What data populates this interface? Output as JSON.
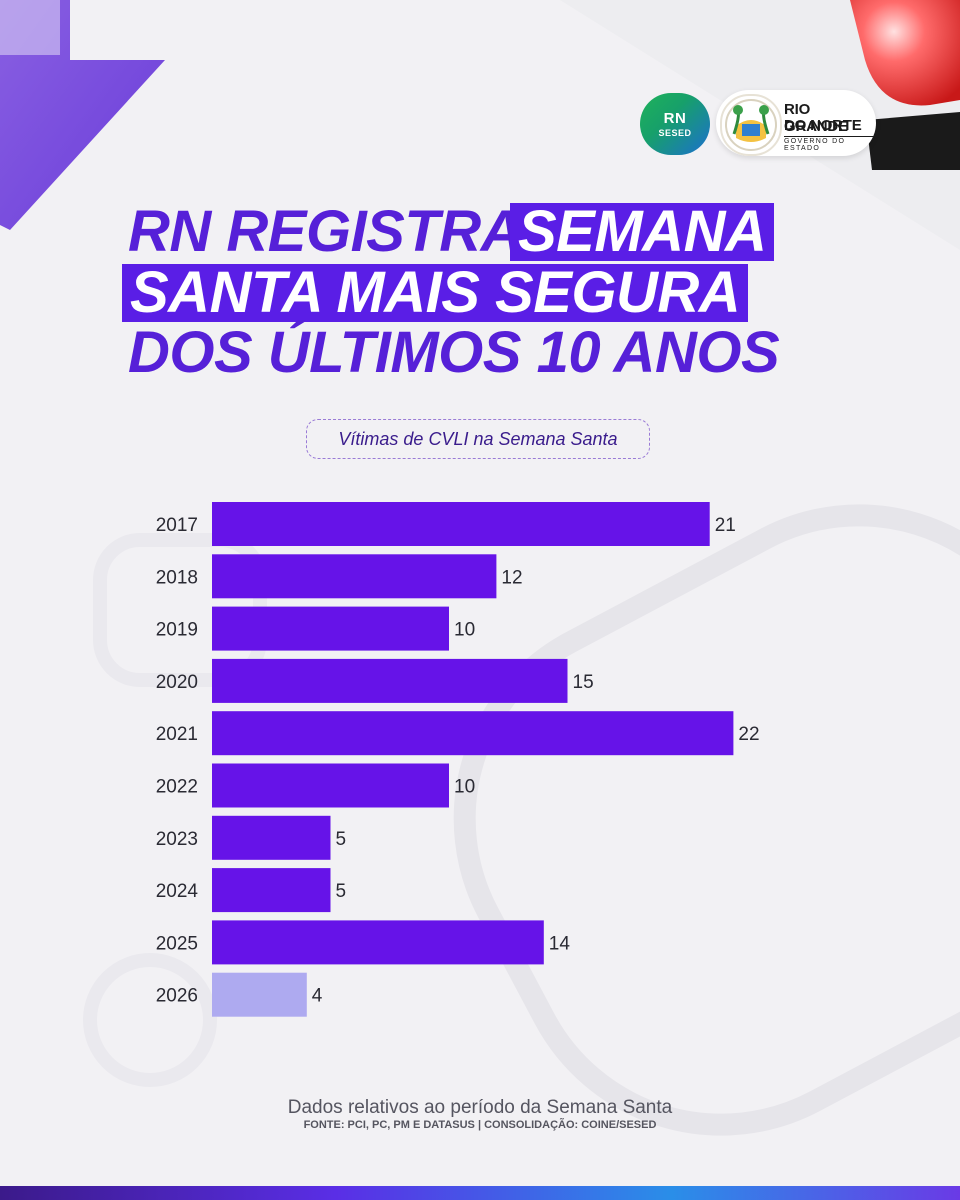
{
  "logos": {
    "rn_main": "RN",
    "rn_sub": "SESED",
    "gov_line1": "RIO GRANDE",
    "gov_line2": "DO NORTE",
    "gov_sub": "GOVERNO DO ESTADO"
  },
  "headline": {
    "line1_a": "RN REGISTRA",
    "line1_b": "SEMANA",
    "line2": "SANTA MAIS SEGURA",
    "line3": "DOS ÚLTIMOS 10 ANOS"
  },
  "colors": {
    "bar": "#6613e8",
    "bar_current": "#aeaaf0",
    "headline": "#5620d8",
    "highlight": "#5a1ee6"
  },
  "chart_data": {
    "type": "bar",
    "orientation": "horizontal",
    "title": "Vítimas de CVLI na Semana Santa",
    "categories": [
      "2017",
      "2018",
      "2019",
      "2020",
      "2021",
      "2022",
      "2023",
      "2024",
      "2025",
      "2026"
    ],
    "values": [
      21,
      12,
      10,
      15,
      22,
      10,
      5,
      5,
      14,
      4
    ],
    "data_labels": [
      "21",
      "12",
      "10",
      "15",
      "22",
      "10",
      "5",
      "5",
      "14",
      "4"
    ],
    "highlighted_category": "2026",
    "xlim": [
      0,
      22
    ],
    "grid": false,
    "legend": "none"
  },
  "footer": {
    "note": "Dados relativos ao período da Semana Santa",
    "source": "FONTE: PCI, PC, PM E DATASUS | CONSOLIDAÇÃO: COINE/SESED"
  }
}
